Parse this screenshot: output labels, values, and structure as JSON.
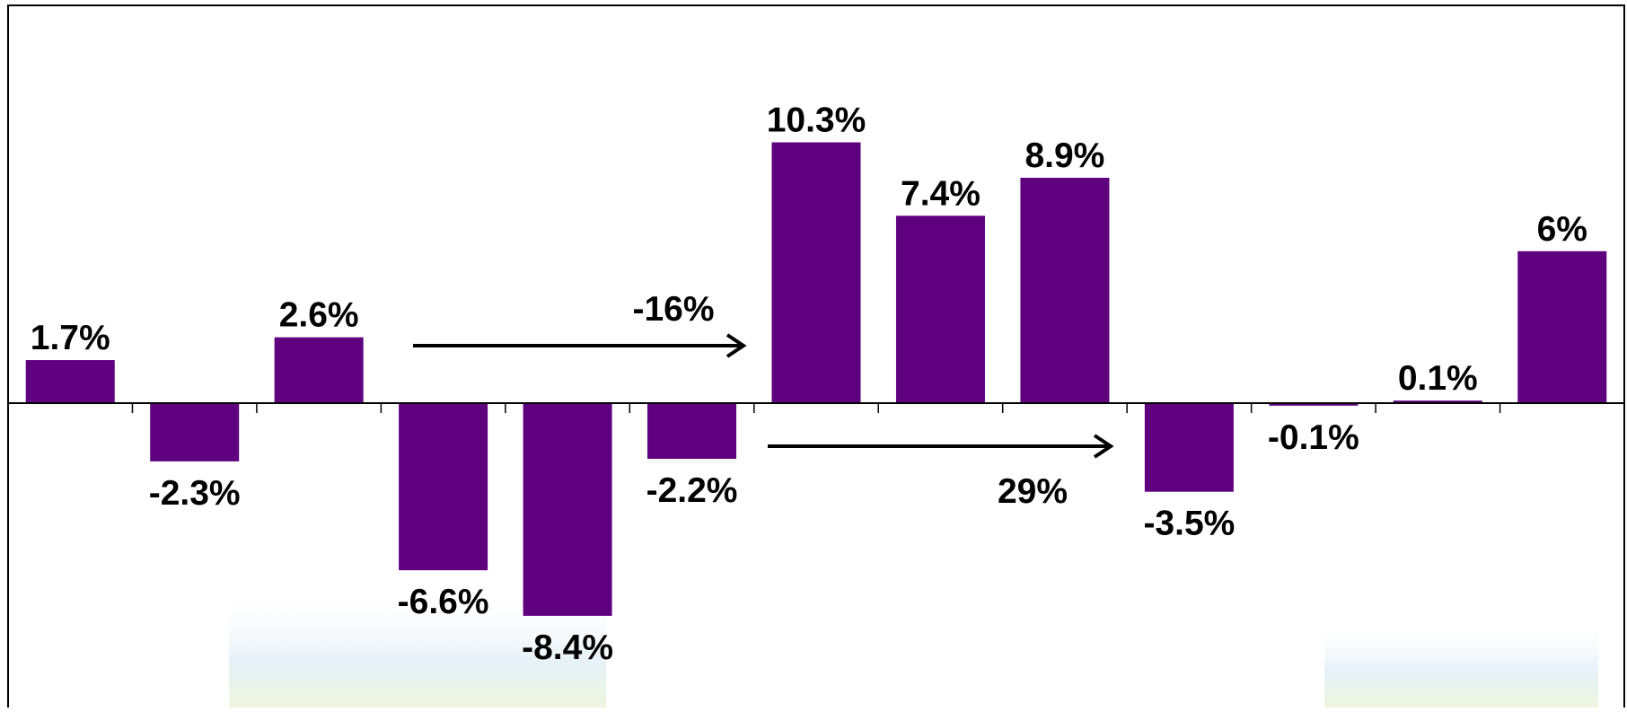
{
  "chart_data": {
    "type": "bar",
    "title": "",
    "xlabel": "",
    "ylabel": "",
    "grid": false,
    "legend": "none",
    "categories": [
      "",
      "",
      "",
      "",
      "",
      "",
      "",
      "",
      "",
      "",
      "",
      "",
      ""
    ],
    "values": [
      1.7,
      -2.3,
      2.6,
      -6.6,
      -8.4,
      -2.2,
      10.3,
      7.4,
      8.9,
      -3.5,
      -0.1,
      0.1,
      6
    ],
    "data_labels": [
      "1.7%",
      "-2.3%",
      "2.6%",
      "-6.6%",
      "-8.4%",
      "-2.2%",
      "10.3%",
      "7.4%",
      "8.9%",
      "-3.5%",
      "-0.1%",
      "0.1%",
      "6%"
    ],
    "bar_color": "#5f007f",
    "annotations": [
      {
        "label": "-16%",
        "from_index": 3,
        "to_index": 5,
        "direction": "right"
      },
      {
        "label": "29%",
        "from_index": 6,
        "to_index": 8,
        "direction": "right"
      }
    ]
  }
}
